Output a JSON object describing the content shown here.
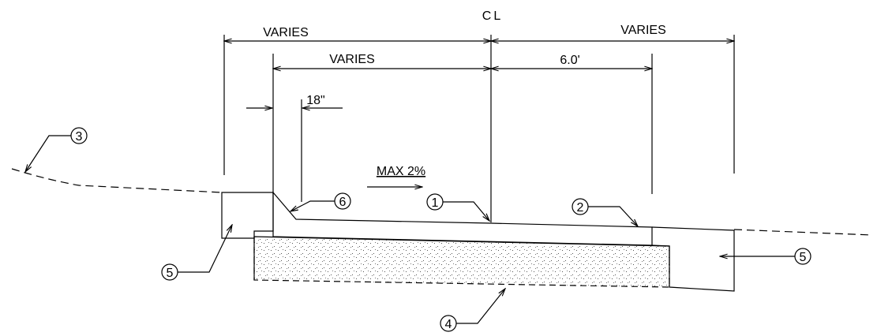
{
  "dimensions": {
    "top_left": "VARIES",
    "top_right": "VARIES",
    "inner_left": "VARIES",
    "inner_right": "6.0'",
    "offset": "18\""
  },
  "centerline": "CL",
  "slope": "MAX 2%",
  "callouts": [
    "1",
    "2",
    "3",
    "4",
    "5",
    "5",
    "6"
  ]
}
